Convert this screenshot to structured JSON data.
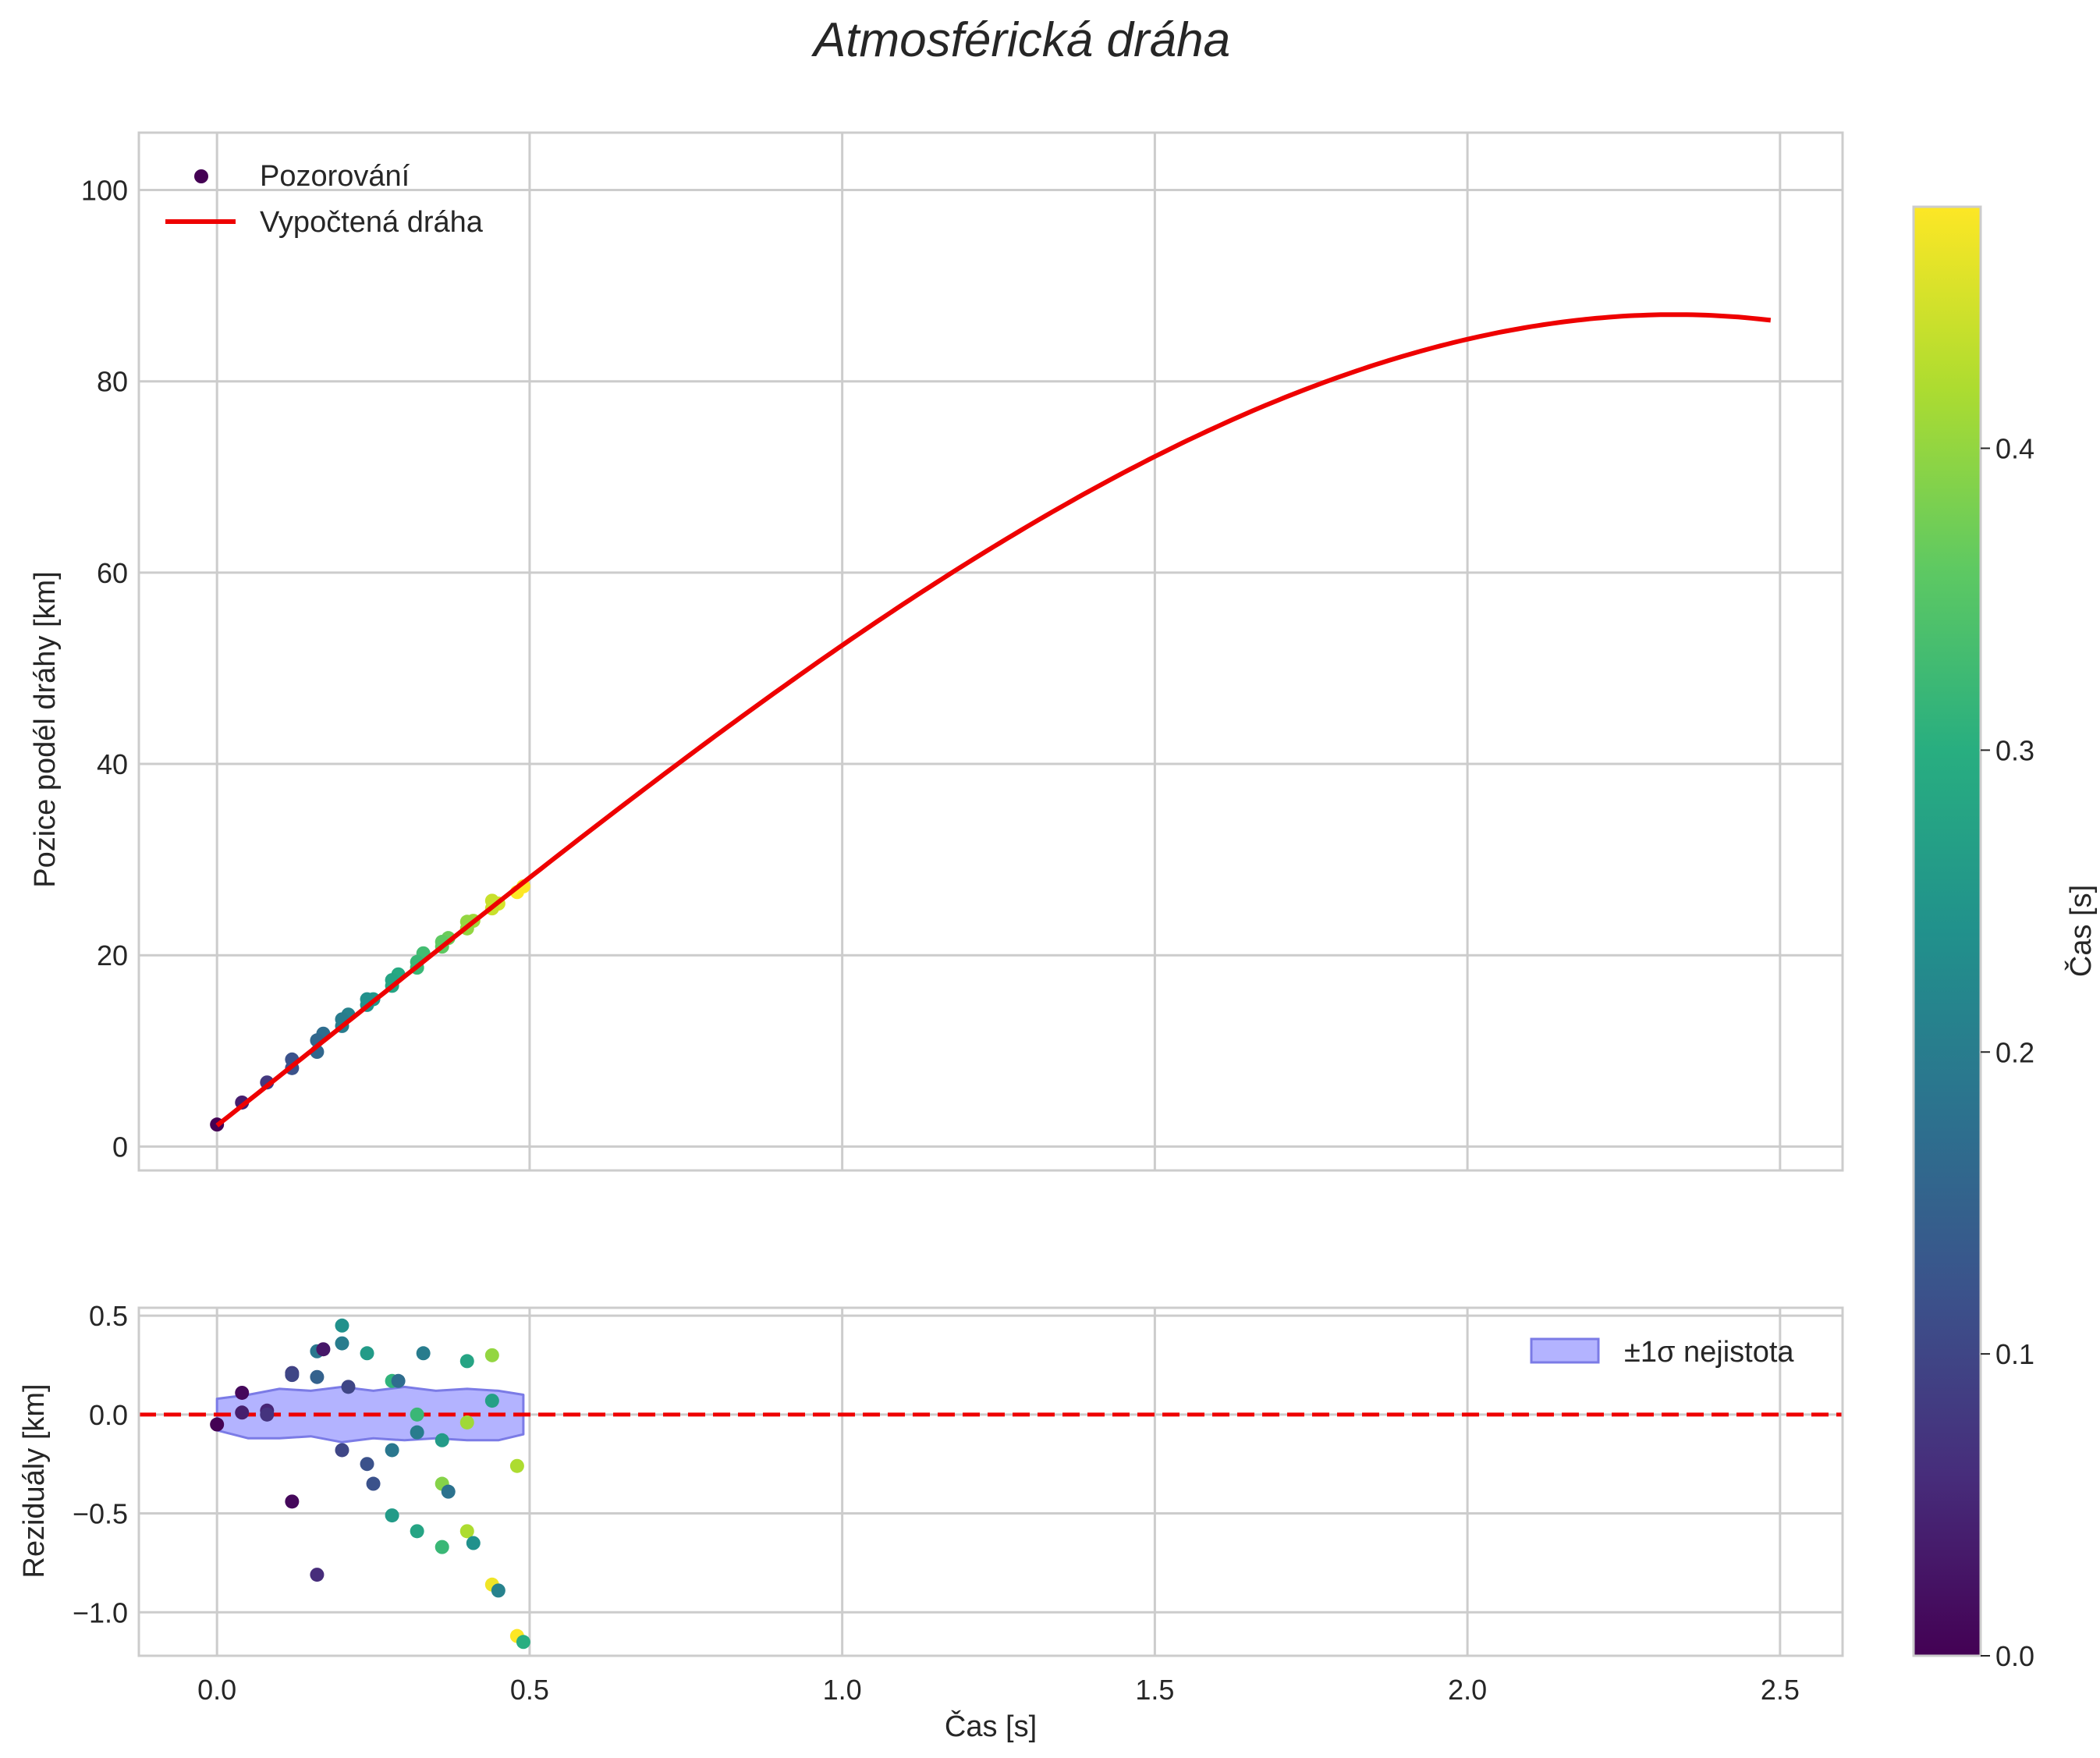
{
  "chart_data": [
    {
      "type": "line",
      "title": "Atmosférická dráha",
      "ylabel": "Pozice podél dráhy [km]",
      "xlim": [
        -0.125,
        2.6
      ],
      "ylim": [
        -2.5,
        106
      ],
      "xticks": [
        0.0,
        0.5,
        1.0,
        1.5,
        2.0,
        2.5
      ],
      "yticks": [
        0,
        20,
        40,
        60,
        80,
        100
      ],
      "ytick_labels": [
        "0",
        "20",
        "40",
        "60",
        "80",
        "100"
      ],
      "grid": true,
      "legend": {
        "position": "top-left",
        "entries": [
          "Pozorování",
          "Vypočtená dráha"
        ]
      },
      "series": [
        {
          "name": "Vypočtená dráha",
          "kind": "line",
          "color": "#ee0000",
          "polynomial": [
            2.2,
            51.5,
            2.6,
            -3.9
          ],
          "x_range": [
            0.0,
            2.485
          ]
        },
        {
          "name": "Pozorování",
          "kind": "scatter",
          "colormap": "viridis",
          "x": [
            0.0,
            0.04,
            0.08,
            0.12,
            0.12,
            0.16,
            0.16,
            0.17,
            0.2,
            0.2,
            0.21,
            0.24,
            0.24,
            0.25,
            0.28,
            0.28,
            0.29,
            0.32,
            0.32,
            0.33,
            0.36,
            0.36,
            0.37,
            0.4,
            0.4,
            0.41,
            0.44,
            0.44,
            0.45,
            0.48,
            0.49
          ],
          "y": [
            2.3,
            4.6,
            6.7,
            8.2,
            9.1,
            9.9,
            11.1,
            11.8,
            12.6,
            13.3,
            13.8,
            14.8,
            15.4,
            15.4,
            16.8,
            17.4,
            18.0,
            18.7,
            19.3,
            20.2,
            20.9,
            21.4,
            21.8,
            22.8,
            23.5,
            23.6,
            24.9,
            25.7,
            25.4,
            26.6,
            27.2
          ]
        }
      ]
    },
    {
      "type": "scatter",
      "ylabel": "Reziduály [km]",
      "xlabel": "Čas [s]",
      "xlim": [
        -0.125,
        2.6
      ],
      "ylim": [
        -1.22,
        0.54
      ],
      "xticks": [
        0.0,
        0.5,
        1.0,
        1.5,
        2.0,
        2.5
      ],
      "xtick_labels": [
        "0.0",
        "0.5",
        "1.0",
        "1.5",
        "2.0",
        "2.5"
      ],
      "yticks": [
        -1.0,
        -0.5,
        0.0,
        0.5
      ],
      "ytick_labels": [
        "−1.0",
        "−0.5",
        "0.0",
        "0.5"
      ],
      "grid": true,
      "legend": {
        "position": "top-right",
        "entries": [
          "±1σ nejistota"
        ]
      },
      "band": {
        "name": "±1σ nejistota",
        "color": "#b3b3ff",
        "edge": "#7b7be6",
        "x": [
          0.0,
          0.05,
          0.1,
          0.15,
          0.2,
          0.25,
          0.3,
          0.35,
          0.4,
          0.45,
          0.49
        ],
        "upper": [
          0.08,
          0.1,
          0.13,
          0.12,
          0.14,
          0.12,
          0.14,
          0.12,
          0.13,
          0.12,
          0.1
        ],
        "lower": [
          -0.08,
          -0.12,
          -0.12,
          -0.11,
          -0.14,
          -0.12,
          -0.13,
          -0.12,
          -0.13,
          -0.13,
          -0.1
        ]
      },
      "zero_line": {
        "y": 0.0,
        "color": "#ee0000",
        "style": "dashed"
      },
      "points": {
        "colormap": "viridis",
        "x": [
          0.0,
          0.04,
          0.04,
          0.08,
          0.08,
          0.12,
          0.12,
          0.12,
          0.16,
          0.16,
          0.16,
          0.17,
          0.2,
          0.2,
          0.2,
          0.21,
          0.24,
          0.24,
          0.25,
          0.28,
          0.28,
          0.28,
          0.29,
          0.32,
          0.32,
          0.32,
          0.33,
          0.36,
          0.36,
          0.36,
          0.37,
          0.4,
          0.4,
          0.4,
          0.41,
          0.44,
          0.44,
          0.44,
          0.45,
          0.48,
          0.48,
          0.49
        ],
        "y": [
          -0.05,
          0.11,
          0.01,
          0.02,
          0.0,
          0.21,
          0.2,
          -0.44,
          0.32,
          0.19,
          -0.81,
          0.33,
          0.45,
          0.36,
          -0.18,
          0.14,
          0.31,
          -0.25,
          -0.35,
          0.17,
          -0.51,
          -0.18,
          0.17,
          0.0,
          -0.09,
          -0.59,
          0.31,
          -0.35,
          -0.67,
          -0.13,
          -0.39,
          0.27,
          -0.04,
          -0.59,
          -0.65,
          0.3,
          0.07,
          -0.86,
          -0.89,
          -0.26,
          -1.12,
          -1.15
        ],
        "t": [
          0.0,
          0.01,
          0.04,
          0.05,
          0.07,
          0.09,
          0.1,
          0.01,
          0.19,
          0.15,
          0.06,
          0.03,
          0.24,
          0.2,
          0.1,
          0.1,
          0.26,
          0.12,
          0.12,
          0.31,
          0.26,
          0.19,
          0.17,
          0.32,
          0.2,
          0.28,
          0.2,
          0.39,
          0.32,
          0.26,
          0.18,
          0.28,
          0.41,
          0.42,
          0.24,
          0.4,
          0.27,
          0.47,
          0.21,
          0.42,
          0.48,
          0.3
        ]
      }
    },
    {
      "type": "colorbar",
      "label": "Čas [s]",
      "colormap": "viridis",
      "range": [
        0.0,
        0.48
      ],
      "ticks": [
        0.0,
        0.1,
        0.2,
        0.3,
        0.4
      ],
      "tick_labels": [
        "0.0",
        "0.1",
        "0.2",
        "0.3",
        "0.4"
      ]
    }
  ]
}
